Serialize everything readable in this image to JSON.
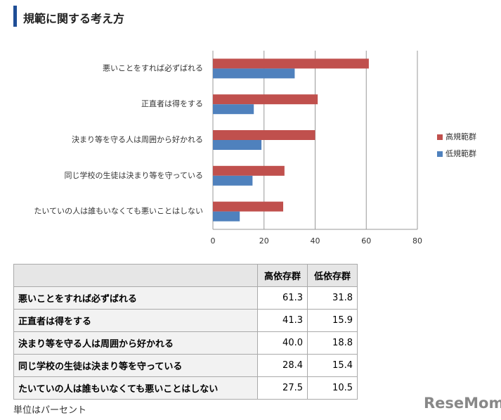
{
  "chart_data": {
    "type": "bar",
    "horizontal": true,
    "title": "規範に関する考え方",
    "categories": [
      "悪いことをすれば必ずばれる",
      "正直者は得をする",
      "決まり等を守る人は周囲から好かれる",
      "同じ学校の生徒は決まり等を守っている",
      "たいていの人は誰もいなくても悪いことはしない"
    ],
    "series": [
      {
        "name": "高規範群",
        "color": "#c0504d",
        "values": [
          61,
          41,
          40,
          28,
          27.5
        ]
      },
      {
        "name": "低規範群",
        "color": "#4f81bd",
        "values": [
          32,
          16,
          19,
          15.5,
          10.5
        ]
      }
    ],
    "xlim": [
      0,
      80
    ],
    "xticks": [
      0,
      20,
      40,
      60,
      80
    ],
    "grid": true,
    "legend": "right"
  },
  "table": {
    "header": [
      "高依存群",
      "低依存群"
    ],
    "rows": [
      [
        "悪いことをすれば必ずばれる",
        "61.3",
        "31.8"
      ],
      [
        "正直者は得をする",
        "41.3",
        "15.9"
      ],
      [
        "決まり等を守る人は周囲から好かれる",
        "40.0",
        "18.8"
      ],
      [
        "同じ学校の生徒は決まり等を守っている",
        "28.4",
        "15.4"
      ],
      [
        "たいていの人は誰もいなくても悪いことはしない",
        "27.5",
        "10.5"
      ]
    ]
  },
  "footnote": "単位はパーセント",
  "brand": "ReseMom"
}
